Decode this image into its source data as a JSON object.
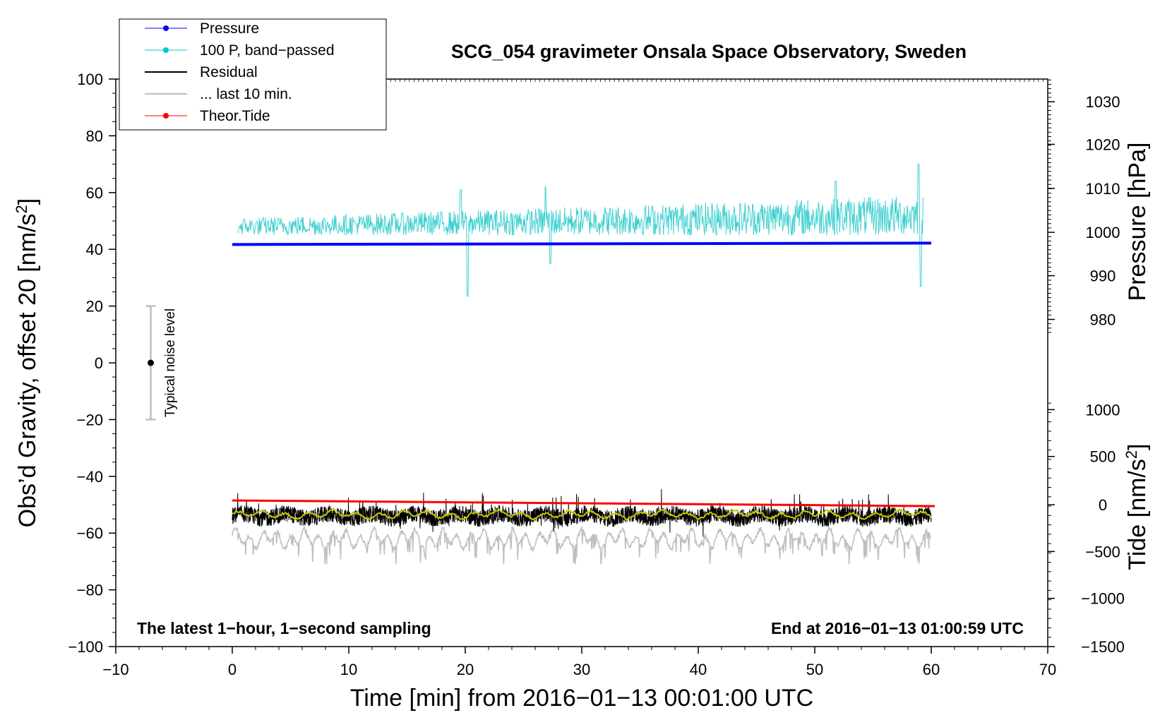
{
  "chart_data": {
    "type": "line",
    "title": "SCG_054 gravimeter Onsala Space Observatory, Sweden",
    "xlabel": "Time [min] from 2016−01−13 00:01:00 UTC",
    "ylabel": "Obs’d Gravity, offset 20 [nm/s",
    "ylabel_sup": "2",
    "ylabel_tail": "]",
    "xlim": [
      -10,
      70
    ],
    "ylim": [
      -100,
      100
    ],
    "xticks": [
      "−10",
      "0",
      "10",
      "20",
      "30",
      "40",
      "50",
      "60",
      "70"
    ],
    "xtick_values": [
      -10,
      0,
      10,
      20,
      30,
      40,
      50,
      60,
      70
    ],
    "yticks": [
      "100",
      "80",
      "60",
      "40",
      "20",
      "0",
      "−20",
      "−40",
      "−60",
      "−80",
      "−100"
    ],
    "ytick_values": [
      100,
      80,
      60,
      40,
      20,
      0,
      -20,
      -40,
      -60,
      -80,
      -100
    ],
    "right_pressure_axis": {
      "label": "Pressure [hPa]",
      "ticks": [
        "1030",
        "1020",
        "1010",
        "1000",
        "990",
        "980"
      ],
      "tick_values": [
        1030,
        1020,
        1010,
        1000,
        990,
        980
      ],
      "gravity_equivalent": [
        92,
        77,
        61.5,
        46,
        30.7,
        15.3
      ]
    },
    "right_tide_axis": {
      "label": "Tide [nm/s",
      "label_sup": "2",
      "label_tail": "]",
      "ticks": [
        "1000",
        "500",
        "0",
        "−500",
        "−1000",
        "−1500"
      ],
      "tick_values": [
        1000,
        500,
        0,
        -500,
        -1000,
        -1500
      ],
      "gravity_equivalent": [
        -16.5,
        -33,
        -50,
        -66.5,
        -83,
        -100
      ]
    },
    "legend": [
      {
        "label": "Pressure",
        "color": "#0000ff",
        "marker": true
      },
      {
        "label": "100 P, band−passed",
        "color": "#00c8c8",
        "marker": true
      },
      {
        "label": "Residual",
        "color": "#000000",
        "marker": false
      },
      {
        "label": "... last 10 min.",
        "color": "#bebebe",
        "marker": false
      },
      {
        "label": "Theor.Tide",
        "color": "#ff0000",
        "marker": true
      }
    ],
    "series": [
      {
        "name": "Pressure",
        "color": "#0000ff",
        "x_range": [
          0,
          60
        ],
        "y_start": 41.7,
        "y_end": 42.2
      },
      {
        "name": "100 P, band−passed",
        "color": "#40d0d0",
        "x_range": [
          0,
          60
        ],
        "baseline": 48,
        "y_min": 23.5,
        "y_max": 70
      },
      {
        "name": "Residual",
        "color": "#000000",
        "x_range": [
          0,
          60
        ],
        "baseline": -54,
        "y_min": -62,
        "y_max": -44
      },
      {
        "name": "Residual smoothed",
        "color": "#c8c800",
        "x_range": [
          0,
          60
        ],
        "baseline": -53.5
      },
      {
        "name": "... last 10 min.",
        "color": "#c0c0c0",
        "x_range": [
          0,
          60
        ],
        "baseline": -62,
        "y_min": -71,
        "y_max": -53
      },
      {
        "name": "Theor.Tide",
        "color": "#ff0000",
        "x_range": [
          0,
          60
        ],
        "y_start": -48.5,
        "y_end": -50.5
      }
    ],
    "noise_bar": {
      "label": "Typical noise level",
      "x": -7,
      "center": 0,
      "low": -20,
      "high": 20
    },
    "annotations": {
      "left": "The latest 1−hour, 1−second sampling",
      "right": "End at 2016−01−13 01:00:59 UTC"
    }
  }
}
